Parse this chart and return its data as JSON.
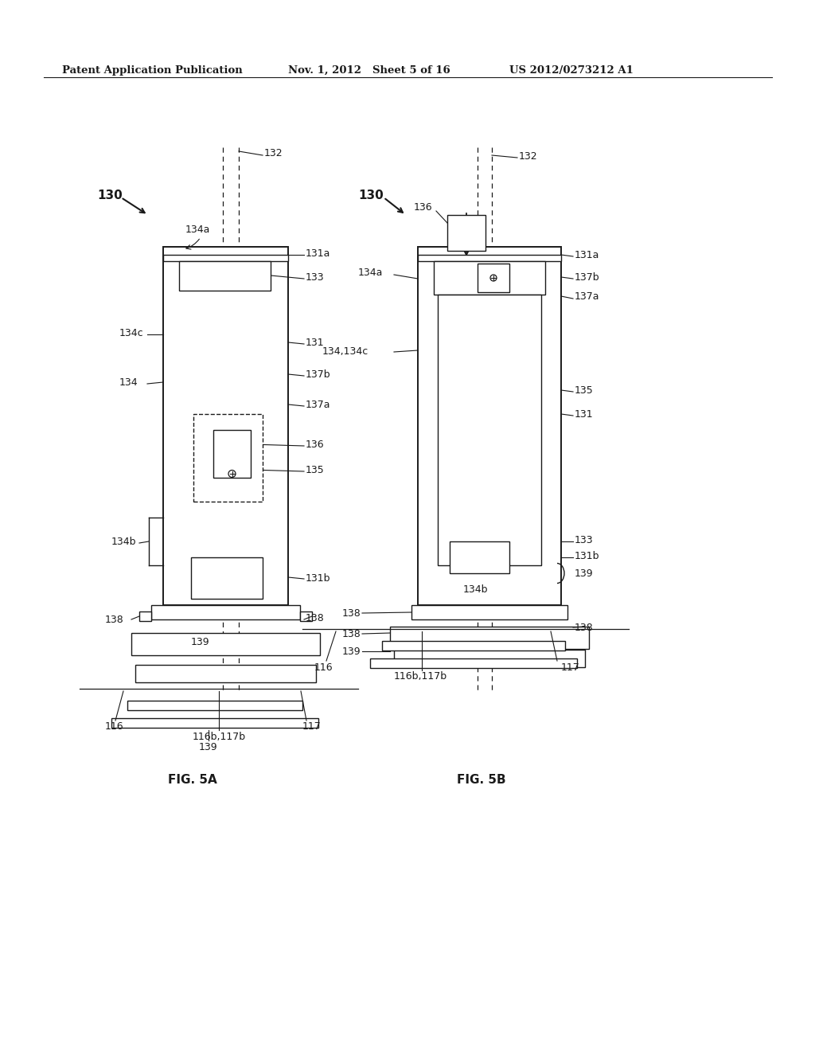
{
  "bg_color": "#ffffff",
  "line_color": "#1a1a1a",
  "header_left": "Patent Application Publication",
  "header_mid1": "Nov. 1, 2012",
  "header_mid2": "Sheet 5 of 16",
  "header_right": "US 2012/0273212 A1",
  "fig5a_label": "FIG. 5A",
  "fig5b_label": "FIG. 5B",
  "labels": {
    "130": "130",
    "132": "132",
    "131a": "131a",
    "133": "133",
    "134c": "134c",
    "131": "131",
    "134": "134",
    "137b": "137b",
    "137a": "137a",
    "136": "136",
    "135": "135",
    "134b": "134b",
    "131b": "131b",
    "138": "138",
    "139": "139",
    "116": "116",
    "117": "117",
    "116b117b": "116b,117b",
    "134a": "134a",
    "134134c": "134,134c"
  }
}
